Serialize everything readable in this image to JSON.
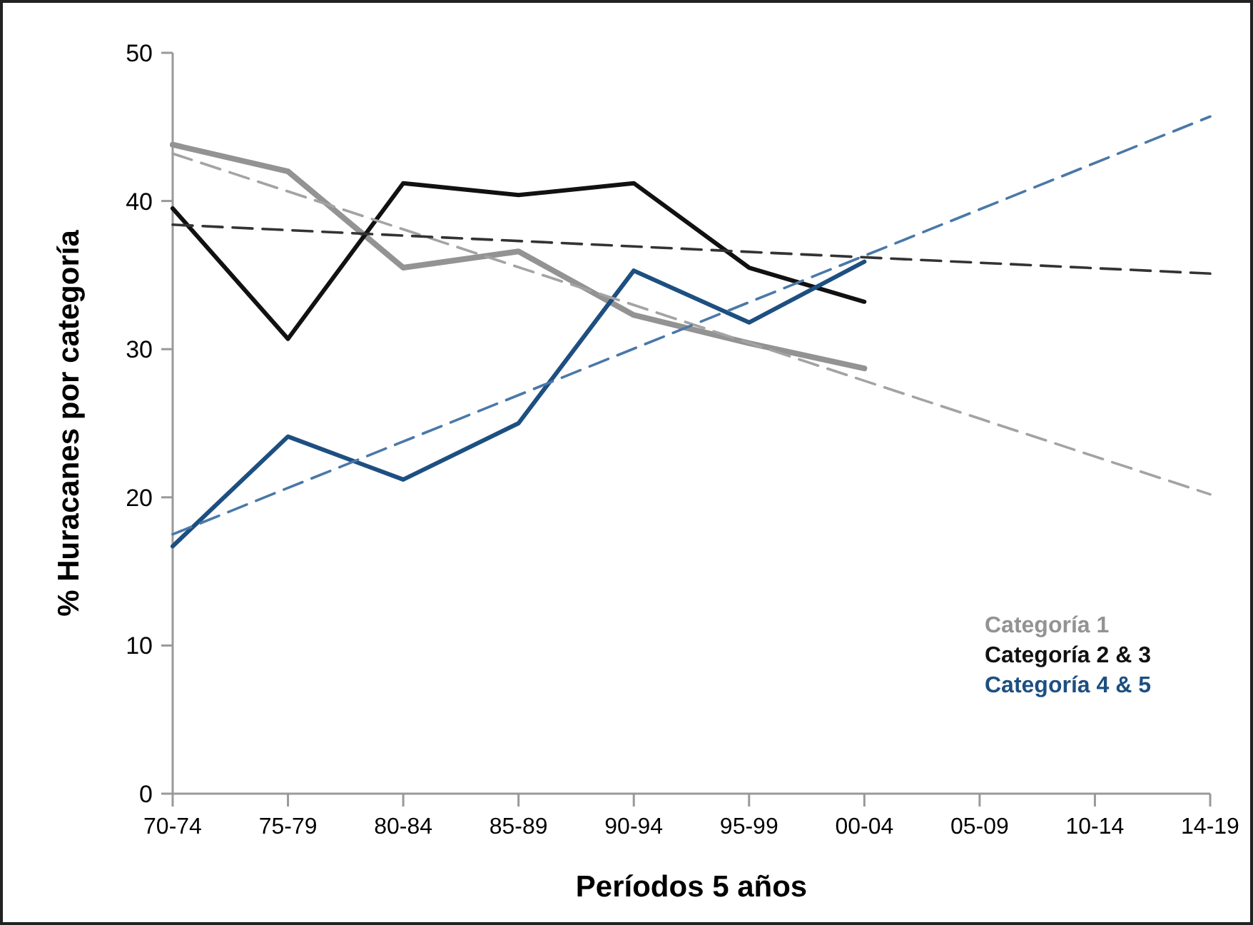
{
  "chart_data": {
    "type": "line",
    "xlabel": "Períodos 5 años",
    "ylabel": "% Huracanes por categoría",
    "categories": [
      "70-74",
      "75-79",
      "80-84",
      "85-89",
      "90-94",
      "95-99",
      "00-04",
      "05-09",
      "10-14",
      "14-19"
    ],
    "ylim": [
      0,
      50
    ],
    "yticks": [
      0,
      10,
      20,
      30,
      40,
      50
    ],
    "grid": false,
    "legend": "bottom right",
    "marker": "none",
    "series": [
      {
        "name": "Categoría 1",
        "color": "#939393",
        "values": [
          43.8,
          42.0,
          35.5,
          36.6,
          32.3,
          30.4,
          28.7,
          null,
          null,
          null
        ]
      },
      {
        "name": "Categoría 2 & 3",
        "color": "#111111",
        "values": [
          39.5,
          30.7,
          41.2,
          40.4,
          41.2,
          35.5,
          33.2,
          null,
          null,
          null
        ]
      },
      {
        "name": "Categoría 4 & 5",
        "color": "#1d4f80",
        "values": [
          16.7,
          24.1,
          21.2,
          25.0,
          35.3,
          31.8,
          35.9,
          null,
          null,
          null
        ]
      },
      {
        "type": "line",
        "line_style": "dashed",
        "color": "#a3a3a3",
        "x": [
          "70-74",
          "14-19"
        ],
        "values": [
          43.2,
          20.2
        ]
      },
      {
        "type": "line",
        "line_style": "dashed",
        "color": "#333333",
        "x": [
          "70-74",
          "14-19"
        ],
        "values": [
          38.4,
          35.1
        ]
      },
      {
        "type": "line",
        "line_style": "dashed",
        "color": "#4a78a8",
        "x": [
          "70-74",
          "14-19"
        ],
        "values": [
          17.5,
          45.7
        ]
      }
    ]
  }
}
